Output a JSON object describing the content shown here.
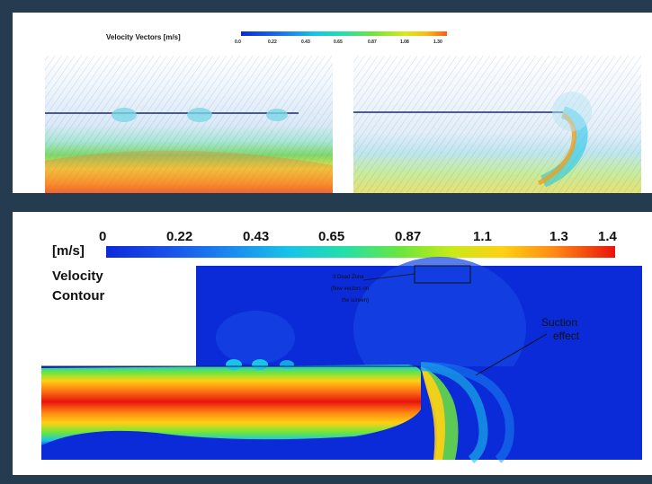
{
  "top": {
    "title": "Velocity Vectors [m/s]",
    "scale_ticks": [
      "0.0",
      "0.22",
      "0.43",
      "0.65",
      "0.87",
      "1.08",
      "1.30"
    ]
  },
  "bottom": {
    "unit": "[m/s]",
    "title_line1": "Velocity",
    "title_line2": "Contour",
    "scale_ticks": [
      "0",
      "0.22",
      "0.43",
      "0.65",
      "0.87",
      "1.1",
      "1.3",
      "1.4"
    ],
    "annotation_box": [
      "3 Dead Zone",
      "(flow vectors on",
      "the screen)"
    ],
    "annotation_suction": [
      "Suction",
      "effect"
    ]
  },
  "colors": {
    "frame": "#253b4f",
    "colormap": [
      "#0b2ad8",
      "#1a6cf0",
      "#18c4e8",
      "#24e0a8",
      "#6ce63c",
      "#d8ea18",
      "#ffb814",
      "#ff5a14",
      "#e8140c"
    ]
  }
}
